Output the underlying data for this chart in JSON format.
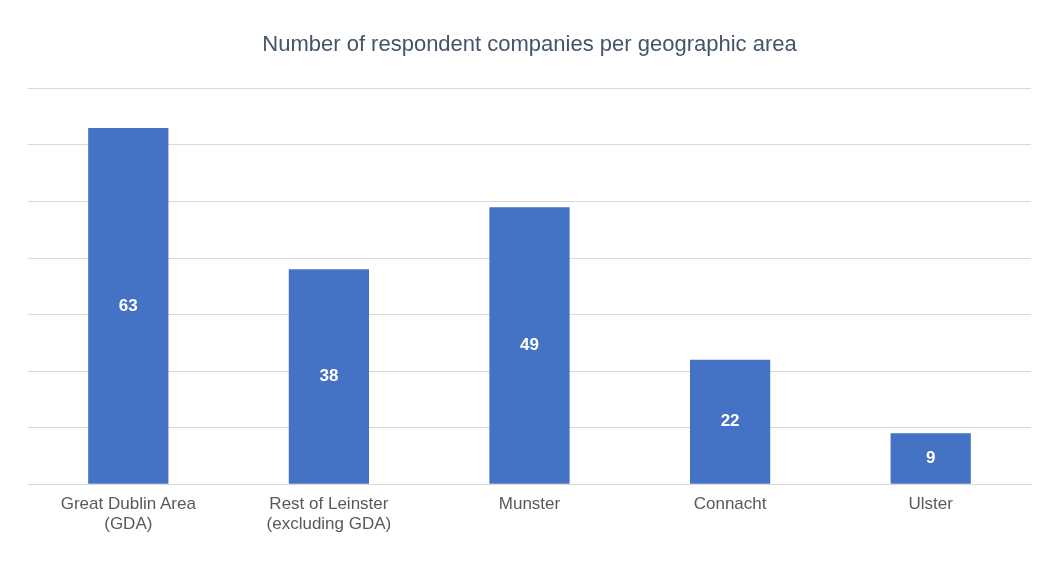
{
  "chart_data": {
    "type": "bar",
    "title": "Number of respondent companies per geographic area",
    "categories": [
      "Great Dublin Area (GDA)",
      "Rest of Leinster (excluding GDA)",
      "Munster",
      "Connacht",
      "Ulster"
    ],
    "values": [
      63,
      38,
      49,
      22,
      9
    ],
    "color": "#4472c4",
    "data_labels": true,
    "grid": "y",
    "tick_labels": "x",
    "ylim": [
      0,
      70
    ],
    "yticks": [
      {
        "value": 0,
        "label": null
      },
      {
        "value": 10,
        "label": null
      },
      {
        "value": 20,
        "label": null
      },
      {
        "value": 30,
        "label": null
      },
      {
        "value": 40,
        "label": null
      },
      {
        "value": 50,
        "label": null
      },
      {
        "value": 60,
        "label": null
      },
      {
        "value": 70,
        "label": null
      }
    ]
  }
}
